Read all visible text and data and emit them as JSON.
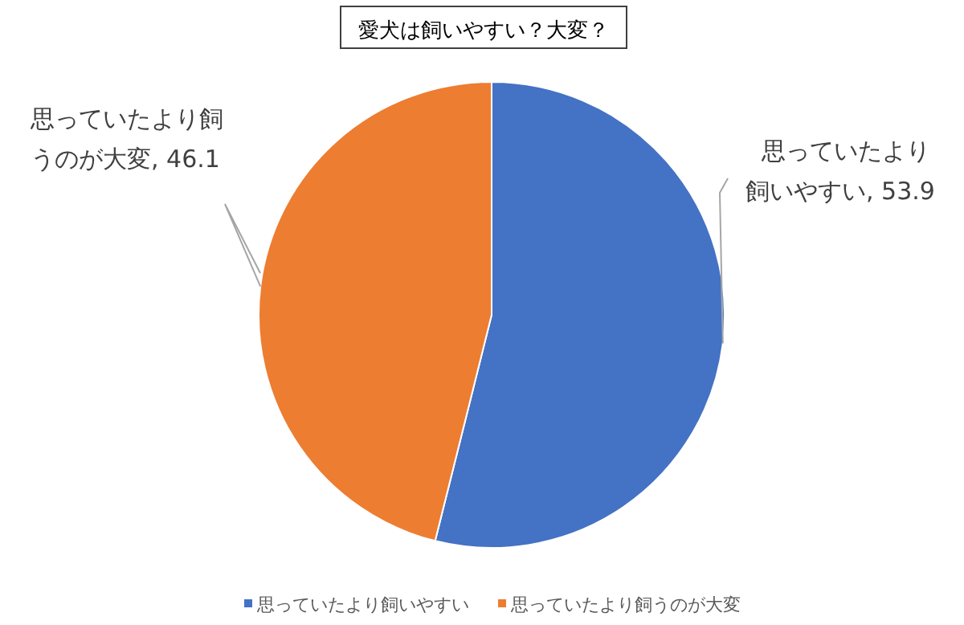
{
  "chart_data": {
    "type": "pie",
    "title": "愛犬は飼いやすい？大変？",
    "categories": [
      "思っていたより飼いやすい",
      "思っていたより飼うのが大変"
    ],
    "values": [
      53.9,
      46.1
    ],
    "colors": [
      "#4472c4",
      "#ed7d31"
    ],
    "value_labels": [
      "思っていたより飼いやすい, 53.9",
      "思っていたより飼うのが大変, 46.1"
    ],
    "legend": "bottom"
  }
}
